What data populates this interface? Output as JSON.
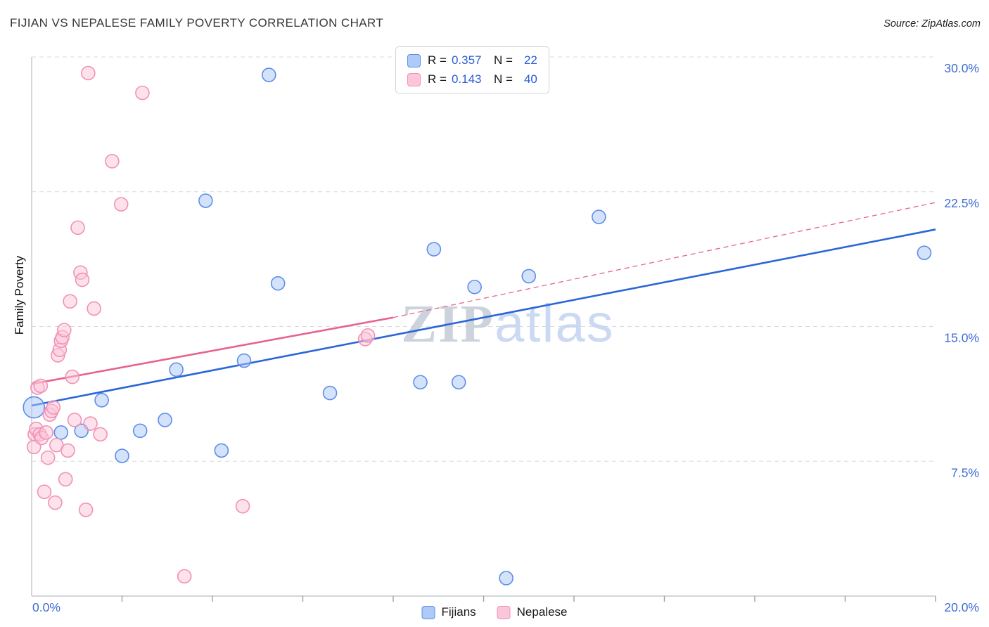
{
  "header": {
    "title": "FIJIAN VS NEPALESE FAMILY POVERTY CORRELATION CHART",
    "source": "Source: ZipAtlas.com"
  },
  "watermark": {
    "part1": "ZIP",
    "part2": "atlas",
    "part1_color": "#c5ccd6",
    "part2_color": "#c3d4f0"
  },
  "legend_box": {
    "rows": [
      {
        "series": "Fijians",
        "swatch_color": "#AECBF8",
        "swatch_border": "#5D8EE8",
        "r_label": "R =",
        "r_value": "0.357",
        "n_label": "N =",
        "n_value": "22"
      },
      {
        "series": "Nepalese",
        "swatch_color": "#FBC6D9",
        "swatch_border": "#F291B4",
        "r_label": "R =",
        "r_value": "0.143",
        "n_label": "N =",
        "n_value": "40"
      }
    ]
  },
  "bottom_legend": {
    "items": [
      {
        "label": "Fijians",
        "swatch_color": "#AECBF8",
        "swatch_border": "#5D8EE8"
      },
      {
        "label": "Nepalese",
        "swatch_color": "#FBC6D9",
        "swatch_border": "#F291B4"
      }
    ]
  },
  "axes": {
    "y_title": "Family Poverty"
  },
  "chart_data": {
    "type": "scatter",
    "title": "FIJIAN VS NEPALESE FAMILY POVERTY CORRELATION CHART",
    "xlabel": "",
    "ylabel": "Family Poverty",
    "x_range": [
      0,
      20
    ],
    "y_range": [
      0,
      30
    ],
    "x_tick_step": 2,
    "grid": "horizontal-dashed",
    "legend_position": "top-center and bottom-center",
    "x_axis_labels": {
      "left": "0.0%",
      "right": "20.0%"
    },
    "y_ticks": [
      {
        "value": 30,
        "label": "30.0%"
      },
      {
        "value": 22.5,
        "label": "22.5%"
      },
      {
        "value": 15,
        "label": "15.0%"
      },
      {
        "value": 7.5,
        "label": "7.5%"
      }
    ],
    "series": [
      {
        "name": "Fijians",
        "R": 0.357,
        "N": 22,
        "point_fill": "#A9C7F7",
        "point_stroke": "#5D8EE8",
        "points": [
          [
            0.05,
            10.5,
            15
          ],
          [
            0.65,
            9.1
          ],
          [
            1.1,
            9.2
          ],
          [
            1.55,
            10.9
          ],
          [
            2.0,
            7.8
          ],
          [
            2.4,
            9.2
          ],
          [
            2.95,
            9.8
          ],
          [
            3.2,
            12.6
          ],
          [
            3.85,
            22.0
          ],
          [
            4.2,
            8.1
          ],
          [
            4.7,
            13.1
          ],
          [
            5.25,
            29.0
          ],
          [
            5.45,
            17.4
          ],
          [
            6.6,
            11.3
          ],
          [
            8.6,
            11.9
          ],
          [
            8.9,
            19.3
          ],
          [
            9.45,
            11.9
          ],
          [
            9.8,
            17.2
          ],
          [
            10.5,
            1.0
          ],
          [
            11.0,
            17.8
          ],
          [
            12.55,
            21.1
          ],
          [
            19.75,
            19.1
          ]
        ]
      },
      {
        "name": "Nepalese",
        "R": 0.143,
        "N": 40,
        "point_fill": "#FBC6D9",
        "point_stroke": "#F291B4",
        "points": [
          [
            0.05,
            8.3
          ],
          [
            0.07,
            9.0
          ],
          [
            0.1,
            9.3
          ],
          [
            0.13,
            11.6
          ],
          [
            0.18,
            9.0
          ],
          [
            0.2,
            11.7
          ],
          [
            0.22,
            8.8
          ],
          [
            0.28,
            5.8
          ],
          [
            0.32,
            9.1
          ],
          [
            0.36,
            7.7
          ],
          [
            0.4,
            10.1
          ],
          [
            0.44,
            10.3
          ],
          [
            0.48,
            10.5
          ],
          [
            0.52,
            5.2
          ],
          [
            0.55,
            8.4
          ],
          [
            0.58,
            13.4
          ],
          [
            0.62,
            13.7
          ],
          [
            0.65,
            14.2
          ],
          [
            0.68,
            14.4
          ],
          [
            0.72,
            14.8
          ],
          [
            0.75,
            6.5
          ],
          [
            0.8,
            8.1
          ],
          [
            0.85,
            16.4
          ],
          [
            0.9,
            12.2
          ],
          [
            0.95,
            9.8
          ],
          [
            1.02,
            20.5
          ],
          [
            1.08,
            18.0
          ],
          [
            1.12,
            17.6
          ],
          [
            1.2,
            4.8
          ],
          [
            1.25,
            29.1
          ],
          [
            1.3,
            9.6
          ],
          [
            1.38,
            16.0
          ],
          [
            1.52,
            9.0
          ],
          [
            1.78,
            24.2
          ],
          [
            1.98,
            21.8
          ],
          [
            2.45,
            28.0
          ],
          [
            3.38,
            1.1
          ],
          [
            4.67,
            5.0
          ],
          [
            7.38,
            14.3
          ],
          [
            7.44,
            14.5
          ]
        ]
      }
    ],
    "trend_lines": [
      {
        "series": "Fijians",
        "color": "#2B66D9",
        "style": "solid",
        "start": [
          0,
          10.6
        ],
        "end": [
          20,
          20.4
        ]
      },
      {
        "series": "Nepalese",
        "color": "#E8638C",
        "style": "solid",
        "start": [
          0,
          11.8
        ],
        "end": [
          8,
          15.5
        ]
      },
      {
        "series": "Nepalese",
        "color": "#E8638C",
        "style": "dashed",
        "start": [
          8,
          15.5
        ],
        "end": [
          20,
          21.9
        ]
      }
    ]
  }
}
